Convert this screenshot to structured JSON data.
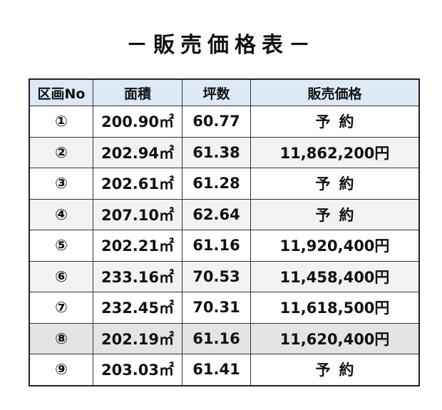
{
  "header": {
    "title": "－販売価格表－"
  },
  "table": {
    "columns": [
      "区画No",
      "面積",
      "坪数",
      "販売価格"
    ],
    "rows": [
      [
        "①",
        "200.90㎡",
        "60.77",
        "予約"
      ],
      [
        "②",
        "202.94㎡",
        "61.38",
        "11,862,200円"
      ],
      [
        "③",
        "202.61㎡",
        "61.28",
        "予約"
      ],
      [
        "④",
        "207.10㎡",
        "62.64",
        "予約"
      ],
      [
        "⑤",
        "202.21㎡",
        "61.16",
        "11,920,400円"
      ],
      [
        "⑥",
        "233.16㎡",
        "70.53",
        "11,458,400円"
      ],
      [
        "⑦",
        "232.45㎡",
        "70.31",
        "11,618,500円"
      ],
      [
        "⑧",
        "202.19㎡",
        "61.16",
        "11,620,400円"
      ],
      [
        "⑨",
        "203.03㎡",
        "61.41",
        "予約"
      ]
    ]
  }
}
